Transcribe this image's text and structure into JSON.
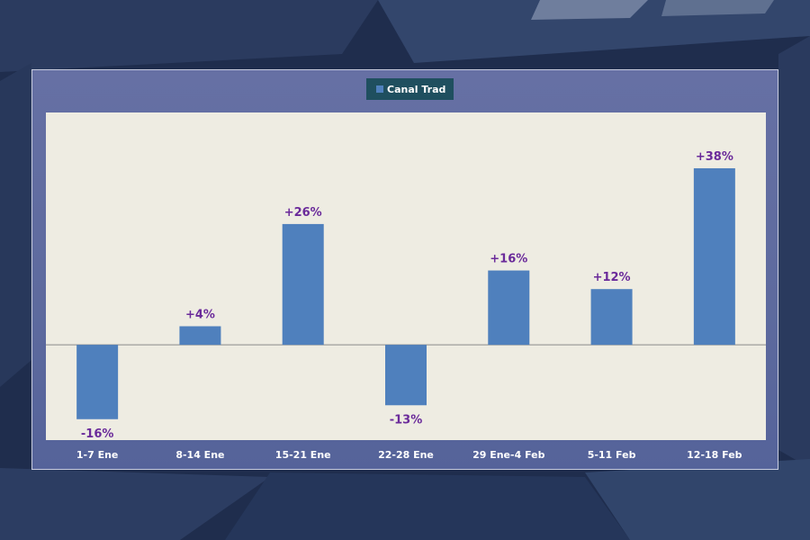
{
  "chart_data": {
    "type": "bar",
    "categories": [
      "1-7 Ene",
      "8-14 Ene",
      "15-21 Ene",
      "22-28 Ene",
      "29 Ene-4 Feb",
      "5-11 Feb",
      "12-18 Feb"
    ],
    "series": [
      {
        "name": "Canal Trad",
        "values": [
          -16,
          4,
          26,
          -13,
          16,
          12,
          38
        ]
      }
    ],
    "data_labels": [
      "-16%",
      "+4%",
      "+26%",
      "-13%",
      "+16%",
      "+12%",
      "+38%"
    ],
    "title": "",
    "xlabel": "",
    "ylabel": "",
    "ylim": [
      -20.5,
      50
    ],
    "grid": false,
    "legend_position": "top-center"
  },
  "colors": {
    "bar": "#4f80bd",
    "data_label": "#6a2a9a",
    "axis": "#8a8a8a"
  },
  "legend": {
    "label": "Canal Trad"
  }
}
